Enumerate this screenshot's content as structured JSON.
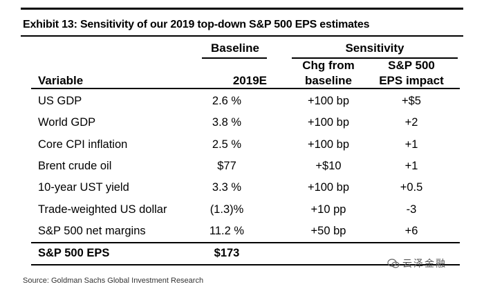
{
  "title": "Exhibit 13: Sensitivity of our 2019 top-down S&P 500 EPS estimates",
  "groups": {
    "baseline": "Baseline",
    "sensitivity": "Sensitivity"
  },
  "headers": {
    "variable": "Variable",
    "year": "2019E",
    "chg_line1": "Chg from",
    "chg_line2": "baseline",
    "eps_line1": "S&P 500",
    "eps_line2": "EPS impact"
  },
  "rows": [
    {
      "variable": "US GDP",
      "baseline": "2.6 %",
      "change": "+100 bp",
      "impact": "+$5"
    },
    {
      "variable": "World GDP",
      "baseline": "3.8 %",
      "change": "+100 bp",
      "impact": "+2"
    },
    {
      "variable": "Core CPI inflation",
      "baseline": "2.5 %",
      "change": "+100 bp",
      "impact": "+1"
    },
    {
      "variable": "Brent crude oil",
      "baseline": "$77",
      "change": "+$10",
      "impact": "+1"
    },
    {
      "variable": "10-year UST yield",
      "baseline": "3.3 %",
      "change": "+100 bp",
      "impact": "+0.5"
    },
    {
      "variable": "Trade-weighted US dollar",
      "baseline": "(1.3)%",
      "change": "+10 pp",
      "impact": "-3"
    },
    {
      "variable": "S&P 500 net margins",
      "baseline": "11.2 %",
      "change": "+50 bp",
      "impact": "+6"
    }
  ],
  "total": {
    "variable": "S&P 500 EPS",
    "baseline": "$173"
  },
  "watermark": "云泽金融",
  "source": "Source: Goldman Sachs Global Investment Research"
}
